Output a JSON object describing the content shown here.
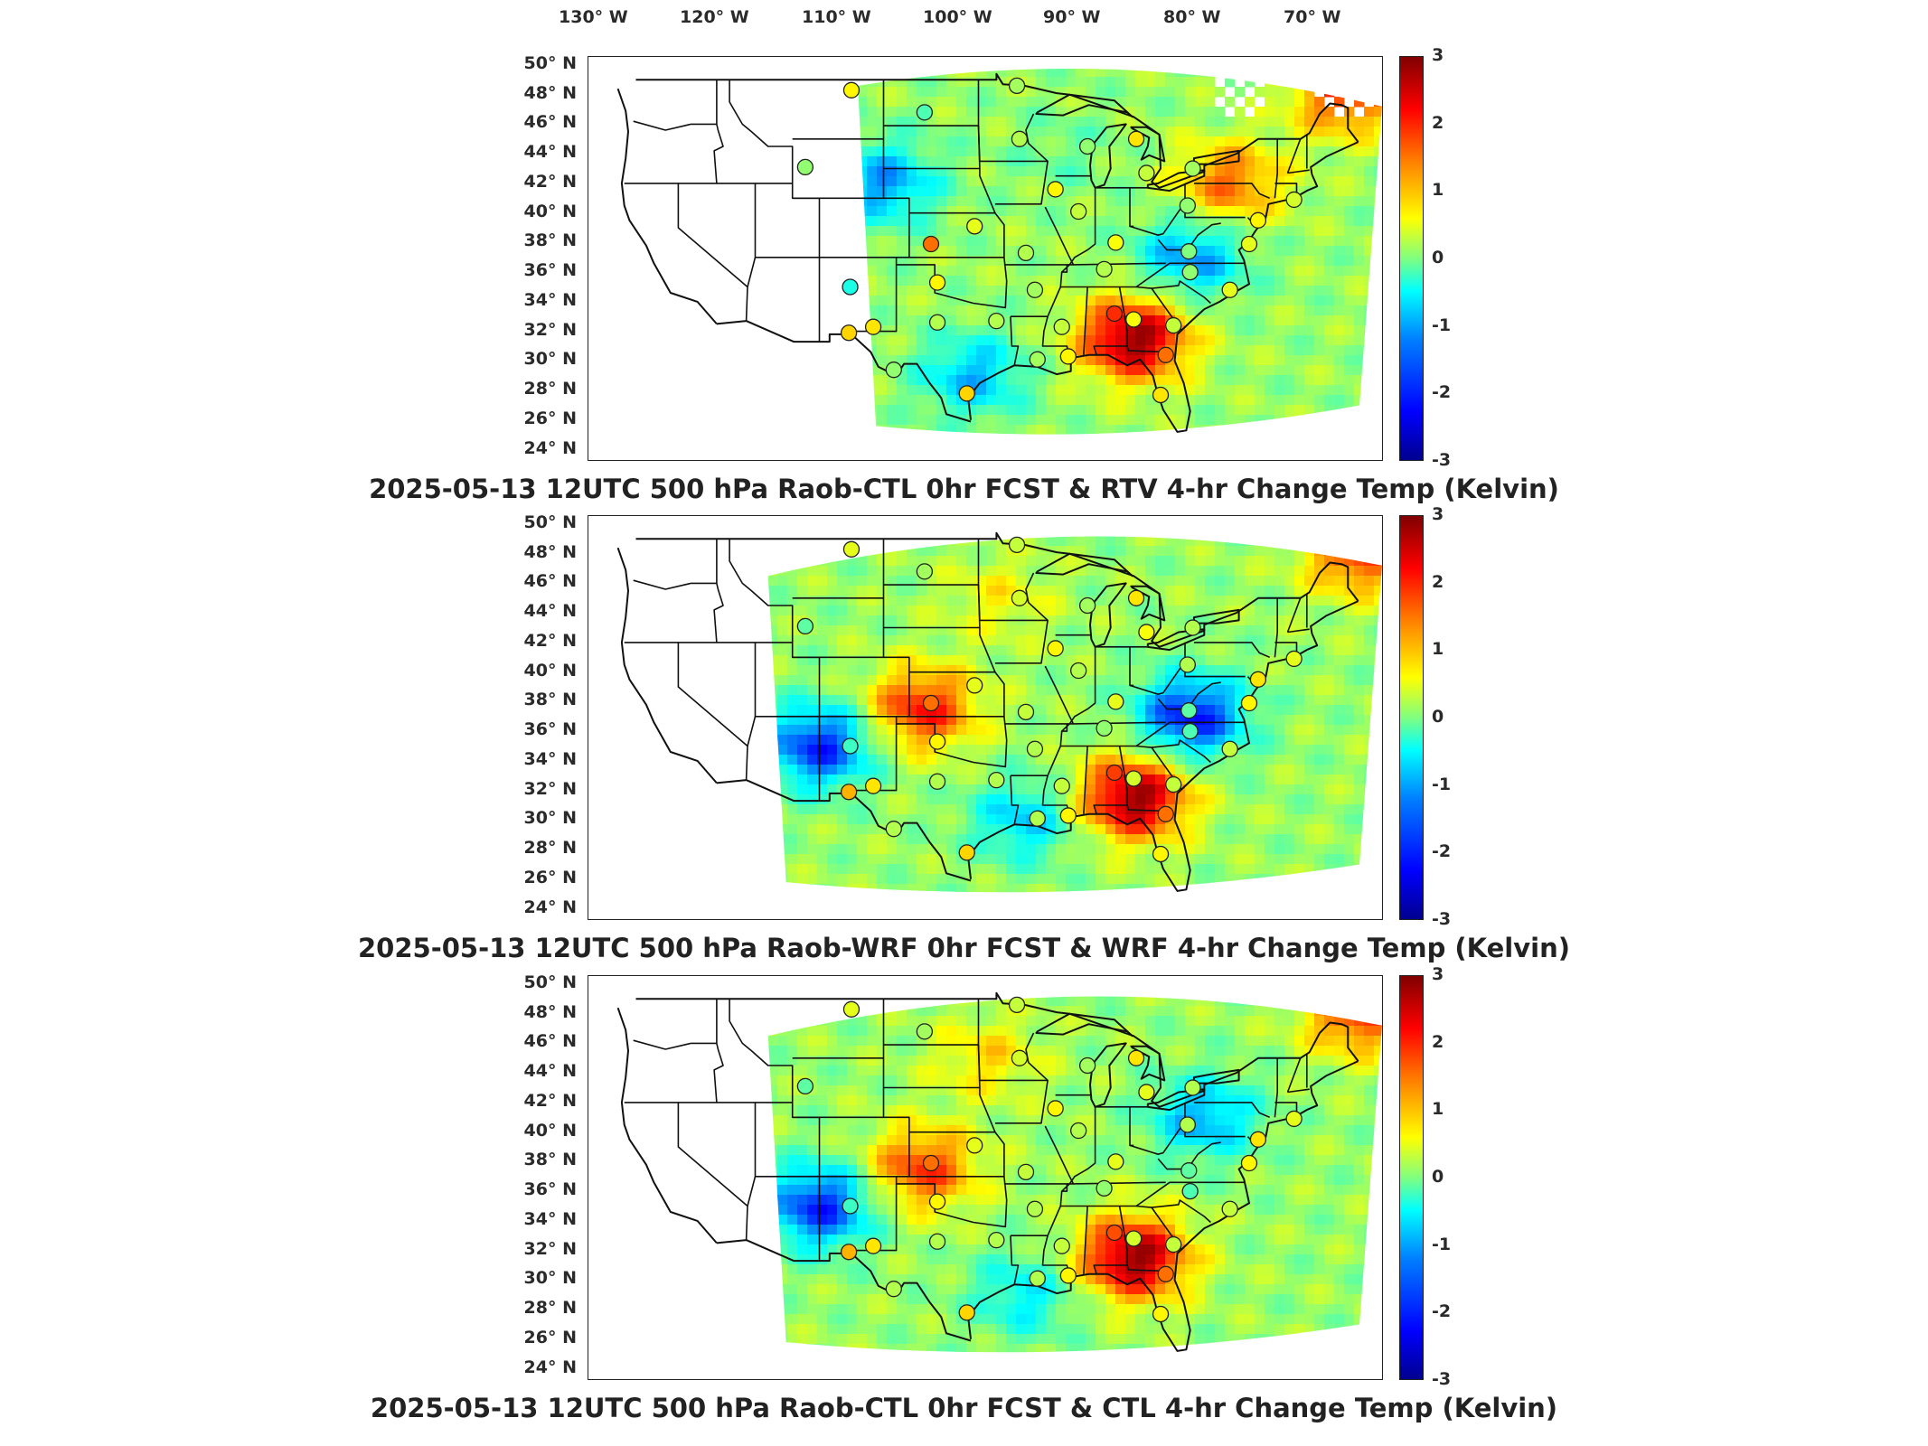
{
  "longitude_labels": [
    "130° W",
    "120° W",
    "110° W",
    "100° W",
    "90° W",
    "80° W",
    "70° W"
  ],
  "latitude_labels": [
    "50° N",
    "48° N",
    "46° N",
    "44° N",
    "42° N",
    "40° N",
    "38° N",
    "36° N",
    "34° N",
    "32° N",
    "30° N",
    "28° N",
    "26° N",
    "24° N"
  ],
  "colorbar": {
    "ticks": [
      "3",
      "2",
      "1",
      "0",
      "-1",
      "-2",
      "-3"
    ],
    "min": -3,
    "max": 3,
    "colors": [
      "#00008f",
      "#0000ff",
      "#0080ff",
      "#00ffff",
      "#80ff80",
      "#ffff00",
      "#ff8000",
      "#ff0000",
      "#800000"
    ]
  },
  "panels": [
    {
      "title": "2025-05-13 12UTC 500 hPa Raob-CTL 0hr FCST & RTV 4-hr Change Temp (Kelvin)",
      "field": "RTV 4-hr Change Temp",
      "coverage_west_lon": -106,
      "has_missing_patches": true,
      "background_anomalies": [
        {
          "lon": -84.5,
          "lat": 31.5,
          "value": 2.8
        },
        {
          "lon": -68,
          "lat": 48,
          "value": 1.8
        },
        {
          "lon": -77,
          "lat": 42,
          "value": 1.5
        },
        {
          "lon": -104,
          "lat": 42,
          "value": -1.5
        },
        {
          "lon": -97,
          "lat": 29,
          "value": -1.3
        },
        {
          "lon": -80,
          "lat": 37,
          "value": -1.5
        },
        {
          "lon": -90,
          "lat": 44,
          "value": -0.3
        }
      ]
    },
    {
      "title": "2025-05-13 12UTC 500 hPa Raob-WRF 0hr FCST & WRF 4-hr Change Temp (Kelvin)",
      "field": "WRF 4-hr Change Temp",
      "coverage_west_lon": -113,
      "has_missing_patches": false,
      "background_anomalies": [
        {
          "lon": -84.5,
          "lat": 31.5,
          "value": 2.8
        },
        {
          "lon": -101,
          "lat": 37.5,
          "value": 2.0
        },
        {
          "lon": -67,
          "lat": 48,
          "value": 1.8
        },
        {
          "lon": -109,
          "lat": 35,
          "value": -2.2
        },
        {
          "lon": -80,
          "lat": 37,
          "value": -2.3
        },
        {
          "lon": -93,
          "lat": 30,
          "value": -1.2
        },
        {
          "lon": -95,
          "lat": 45,
          "value": 0.6
        }
      ]
    },
    {
      "title": "2025-05-13 12UTC 500 hPa Raob-CTL 0hr FCST & CTL 4-hr Change Temp (Kelvin)",
      "field": "CTL 4-hr Change Temp",
      "coverage_west_lon": -113,
      "has_missing_patches": false,
      "background_anomalies": [
        {
          "lon": -84.5,
          "lat": 31.5,
          "value": 2.8
        },
        {
          "lon": -101,
          "lat": 37.5,
          "value": 1.8
        },
        {
          "lon": -67,
          "lat": 48,
          "value": 1.8
        },
        {
          "lon": -109,
          "lat": 35,
          "value": -2.2
        },
        {
          "lon": -79,
          "lat": 41,
          "value": -1.4
        },
        {
          "lon": -93,
          "lat": 29,
          "value": -1.0
        },
        {
          "lon": -96,
          "lat": 45,
          "value": 0.8
        }
      ]
    }
  ],
  "raob_stations": [
    {
      "lon": -106.5,
      "lat": 48.3,
      "values": [
        0.8,
        0.6,
        0.6
      ]
    },
    {
      "lon": -100.8,
      "lat": 46.8,
      "values": [
        -0.3,
        0.2,
        0.2
      ]
    },
    {
      "lon": -93.6,
      "lat": 48.6,
      "values": [
        0.2,
        0.4,
        0.4
      ]
    },
    {
      "lon": -110.1,
      "lat": 43.1,
      "values": [
        0.1,
        -0.2,
        -0.2
      ]
    },
    {
      "lon": -93.4,
      "lat": 45.0,
      "values": [
        0.3,
        0.5,
        0.5
      ]
    },
    {
      "lon": -88.1,
      "lat": 44.5,
      "values": [
        0.1,
        0.2,
        0.2
      ]
    },
    {
      "lon": -84.3,
      "lat": 45.0,
      "values": [
        0.9,
        0.9,
        0.9
      ]
    },
    {
      "lon": -83.5,
      "lat": 42.7,
      "values": [
        0.4,
        0.7,
        0.6
      ]
    },
    {
      "lon": -79.9,
      "lat": 43.0,
      "values": [
        0.2,
        0.3,
        0.3
      ]
    },
    {
      "lon": -90.6,
      "lat": 41.6,
      "values": [
        0.8,
        0.8,
        0.8
      ]
    },
    {
      "lon": -88.8,
      "lat": 40.1,
      "values": [
        0.4,
        0.3,
        0.3
      ]
    },
    {
      "lon": -80.3,
      "lat": 40.5,
      "values": [
        0.1,
        0.3,
        0.3
      ]
    },
    {
      "lon": -96.9,
      "lat": 39.1,
      "values": [
        0.6,
        0.6,
        0.6
      ]
    },
    {
      "lon": -100.3,
      "lat": 37.9,
      "values": [
        1.6,
        1.6,
        1.6
      ]
    },
    {
      "lon": -92.9,
      "lat": 37.3,
      "values": [
        0.3,
        0.4,
        0.4
      ]
    },
    {
      "lon": -85.9,
      "lat": 38.0,
      "values": [
        0.7,
        0.6,
        0.6
      ]
    },
    {
      "lon": -80.2,
      "lat": 37.4,
      "values": [
        0.0,
        -0.2,
        -0.2
      ]
    },
    {
      "lon": -106.6,
      "lat": 35.0,
      "values": [
        -0.6,
        -0.4,
        -0.4
      ]
    },
    {
      "lon": -99.8,
      "lat": 35.3,
      "values": [
        0.8,
        0.8,
        0.8
      ]
    },
    {
      "lon": -92.2,
      "lat": 34.8,
      "values": [
        0.2,
        0.3,
        0.3
      ]
    },
    {
      "lon": -86.8,
      "lat": 36.2,
      "values": [
        0.3,
        0.1,
        0.1
      ]
    },
    {
      "lon": -80.1,
      "lat": 36.0,
      "values": [
        0.1,
        -0.3,
        -0.3
      ]
    },
    {
      "lon": -106.7,
      "lat": 31.9,
      "values": [
        1.0,
        1.2,
        1.2
      ]
    },
    {
      "lon": -104.8,
      "lat": 32.3,
      "values": [
        0.9,
        0.9,
        0.9
      ]
    },
    {
      "lon": -99.8,
      "lat": 32.6,
      "values": [
        0.3,
        0.3,
        0.3
      ]
    },
    {
      "lon": -95.2,
      "lat": 32.7,
      "values": [
        0.3,
        0.3,
        0.3
      ]
    },
    {
      "lon": -90.1,
      "lat": 32.3,
      "values": [
        0.4,
        0.4,
        0.4
      ]
    },
    {
      "lon": -86.0,
      "lat": 33.2,
      "values": [
        2.0,
        1.9,
        1.8
      ]
    },
    {
      "lon": -84.5,
      "lat": 32.8,
      "values": [
        0.7,
        0.5,
        0.5
      ]
    },
    {
      "lon": -81.4,
      "lat": 32.4,
      "values": [
        0.4,
        0.4,
        0.4
      ]
    },
    {
      "lon": -77.0,
      "lat": 34.8,
      "values": [
        0.6,
        0.4,
        0.4
      ]
    },
    {
      "lon": -75.5,
      "lat": 37.9,
      "values": [
        0.6,
        0.8,
        0.8
      ]
    },
    {
      "lon": -74.8,
      "lat": 39.5,
      "values": [
        0.8,
        0.9,
        0.9
      ]
    },
    {
      "lon": -72.0,
      "lat": 40.9,
      "values": [
        0.5,
        0.6,
        0.6
      ]
    },
    {
      "lon": -103.2,
      "lat": 29.4,
      "values": [
        0.1,
        0.3,
        0.3
      ]
    },
    {
      "lon": -97.5,
      "lat": 27.8,
      "values": [
        1.0,
        1.0,
        1.0
      ]
    },
    {
      "lon": -92.0,
      "lat": 30.1,
      "values": [
        0.2,
        0.3,
        0.3
      ]
    },
    {
      "lon": -89.6,
      "lat": 30.3,
      "values": [
        0.8,
        0.8,
        0.8
      ]
    },
    {
      "lon": -82.0,
      "lat": 30.4,
      "values": [
        1.6,
        1.6,
        1.6
      ]
    },
    {
      "lon": -82.4,
      "lat": 27.7,
      "values": [
        0.9,
        0.8,
        0.8
      ]
    }
  ]
}
